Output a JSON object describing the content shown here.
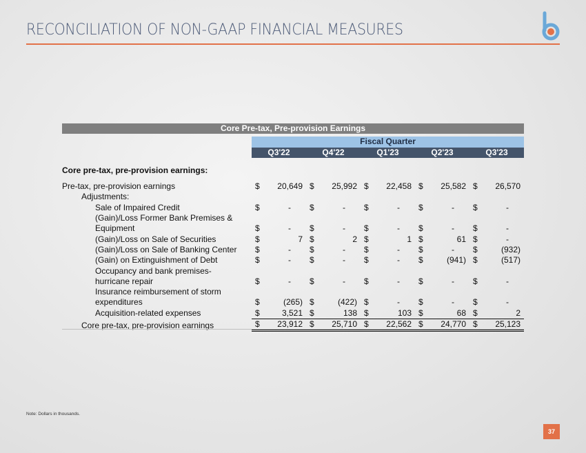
{
  "header": {
    "title": "RECONCILIATION OF NON-GAAP FINANCIAL MEASURES"
  },
  "table": {
    "title": "Core Pre-tax, Pre-provision Earnings",
    "group_header": "Fiscal Quarter",
    "columns": [
      "Q3'22",
      "Q4'22",
      "Q1'23",
      "Q2'23",
      "Q3'23"
    ],
    "section": "Core pre-tax, pre-provision earnings:",
    "currency": "$",
    "rows": [
      {
        "label": "Pre-tax, pre-provision earnings",
        "cells": [
          "20,649",
          "25,992",
          "22,458",
          "25,582",
          "26,570"
        ]
      },
      {
        "label": "Adjustments:"
      },
      {
        "label": "Sale of Impaired Credit",
        "cells": [
          "-",
          "-",
          "-",
          "-",
          "-"
        ]
      },
      {
        "label": "(Gain)/Loss Former Bank Premises & Equipment",
        "cells": [
          "-",
          "-",
          "-",
          "-",
          "-"
        ]
      },
      {
        "label": "(Gain)/Loss on Sale of Securities",
        "cells": [
          "7",
          "2",
          "1",
          "61",
          "-"
        ]
      },
      {
        "label": "(Gain)/Loss on Sale of Banking Center",
        "cells": [
          "-",
          "-",
          "-",
          "-",
          "(932)"
        ]
      },
      {
        "label": "(Gain) on Extinguishment of Debt",
        "cells": [
          "-",
          "-",
          "-",
          "(941)",
          "(517)"
        ]
      },
      {
        "label": "Occupancy and bank premises- hurricane repair",
        "cells": [
          "-",
          "-",
          "-",
          "-",
          "-"
        ]
      },
      {
        "label": "Insurance reimbursement of storm expenditures",
        "cells": [
          "(265)",
          "(422)",
          "-",
          "-",
          "-"
        ]
      },
      {
        "label": "Acquisition-related expenses",
        "cells": [
          "3,521",
          "138",
          "103",
          "68",
          "2"
        ]
      },
      {
        "label": "Core pre-tax, pre-provision earnings",
        "cells": [
          "23,912",
          "25,710",
          "22,562",
          "24,770",
          "25,123"
        ]
      }
    ]
  },
  "footer": {
    "note": "Note: Dollars in thousands.",
    "page": "37"
  }
}
